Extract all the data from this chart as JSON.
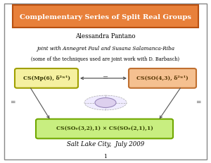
{
  "title": "Complementary Series of Split Real Groups",
  "title_bg": "#E8803A",
  "title_border": "#B85010",
  "author": "Alessandra Pantano",
  "coauthors": "joint with Annegret Paul and Susana Salamanca-Riba",
  "footnote": "(some of the techniques used are joint work with D. Barbasch)",
  "box1_text": "CS(Mp(6), δ²ʷ¹)",
  "box1_bg": "#F5F0A0",
  "box1_border": "#A0A000",
  "box2_text": "CS(SO(4,3), δ²ʷ¹)",
  "box2_bg": "#F5C090",
  "box2_border": "#C07030",
  "box3_text": "CS(SOₑ(3,2),1) × CS(SOₑ(2,1),1)",
  "box3_bg": "#C8EE80",
  "box3_border": "#70A800",
  "equals_color": "#444444",
  "arrow_color": "#555555",
  "date_text": "Salt Lake City,  July 2009",
  "page_num": "1"
}
